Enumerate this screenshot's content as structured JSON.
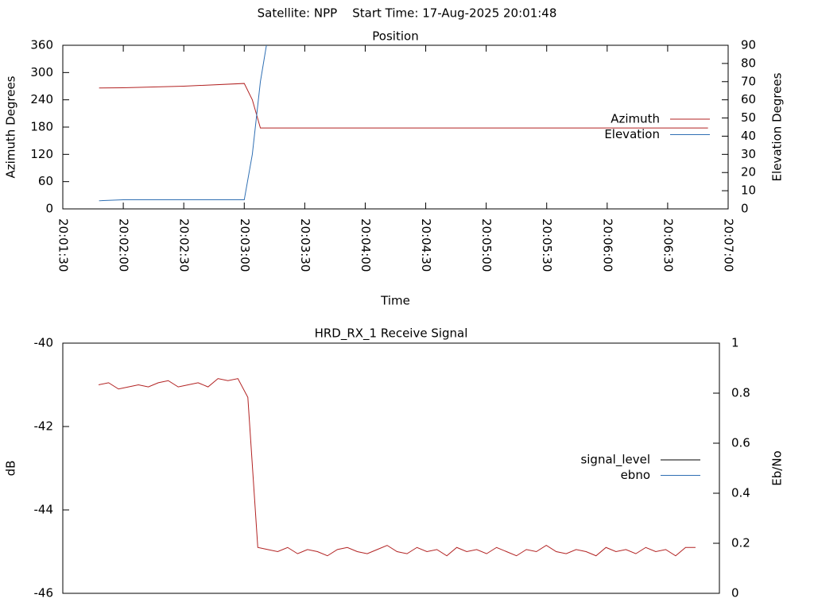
{
  "title": "Satellite: NPP    Start Time: 17-Aug-2025 20:01:48",
  "chart_data": [
    {
      "type": "line",
      "title": "Position",
      "xlabel": "Time",
      "ylabel": "Azimuth Degrees",
      "y2label": "Elevation Degrees",
      "x": [
        "20:01:48",
        "20:02:00",
        "20:02:30",
        "20:03:00",
        "20:03:04",
        "20:03:08",
        "20:03:11",
        "20:03:30",
        "20:04:00",
        "20:04:30",
        "20:05:00",
        "20:05:30",
        "20:06:00",
        "20:06:30",
        "20:06:50"
      ],
      "xlim": [
        "20:01:30",
        "20:07:00"
      ],
      "xticks": [
        "20:01:30",
        "20:02:00",
        "20:02:30",
        "20:03:00",
        "20:03:30",
        "20:04:00",
        "20:04:30",
        "20:05:00",
        "20:05:30",
        "20:06:00",
        "20:06:30",
        "20:07:00"
      ],
      "ylim": [
        0,
        360
      ],
      "yticks": [
        0,
        60,
        120,
        180,
        240,
        300,
        360
      ],
      "y2lim": [
        0,
        90
      ],
      "y2ticks": [
        0,
        10,
        20,
        30,
        40,
        50,
        60,
        70,
        80,
        90
      ],
      "legend": "right",
      "series": [
        {
          "name": "Azimuth",
          "color": "#b22222",
          "values": [
            266,
            266.5,
            270,
            276,
            240,
            178,
            178,
            178,
            178,
            178,
            178,
            178,
            178,
            178,
            178
          ]
        },
        {
          "name": "Elevation",
          "color": "#2f6fb3",
          "axis": "y2",
          "values": [
            4.5,
            5,
            5,
            5,
            30,
            70,
            90,
            null,
            null,
            null,
            null,
            null,
            null,
            null,
            null
          ]
        }
      ]
    },
    {
      "type": "line",
      "title": "HRD_RX_1 Receive Signal",
      "ylabel": "dB",
      "y2label": "Eb/No",
      "x": [
        "20:01:48",
        "20:01:53",
        "20:01:58",
        "20:02:03",
        "20:02:08",
        "20:02:13",
        "20:02:18",
        "20:02:23",
        "20:02:28",
        "20:02:33",
        "20:02:38",
        "20:02:43",
        "20:02:48",
        "20:02:53",
        "20:02:58",
        "20:03:03",
        "20:03:08",
        "20:03:13",
        "20:03:18",
        "20:03:23",
        "20:03:28",
        "20:03:33",
        "20:03:38",
        "20:03:43",
        "20:03:48",
        "20:03:53",
        "20:03:58",
        "20:04:03",
        "20:04:08",
        "20:04:13",
        "20:04:18",
        "20:04:23",
        "20:04:28",
        "20:04:33",
        "20:04:38",
        "20:04:43",
        "20:04:48",
        "20:04:53",
        "20:04:58",
        "20:05:03",
        "20:05:08",
        "20:05:13",
        "20:05:18",
        "20:05:23",
        "20:05:28",
        "20:05:33",
        "20:05:38",
        "20:05:43",
        "20:05:48",
        "20:05:53",
        "20:05:58",
        "20:06:03",
        "20:06:08",
        "20:06:13",
        "20:06:18",
        "20:06:23",
        "20:06:28",
        "20:06:33",
        "20:06:38",
        "20:06:43",
        "20:06:48"
      ],
      "xlim": [
        "20:01:30",
        "20:07:00"
      ],
      "ylim": [
        -46,
        -40
      ],
      "yticks": [
        -46,
        -44,
        -42,
        -40
      ],
      "y2lim": [
        0,
        1
      ],
      "y2ticks": [
        0,
        0.2,
        0.4,
        0.6,
        0.8,
        1
      ],
      "legend": "right",
      "series": [
        {
          "name": "signal_level",
          "color": "#000000",
          "line_color": "#b22222",
          "values": [
            -41.0,
            -40.95,
            -41.1,
            -41.05,
            -41.0,
            -41.05,
            -40.95,
            -40.9,
            -41.05,
            -41.0,
            -40.95,
            -41.05,
            -40.85,
            -40.9,
            -40.85,
            -41.3,
            -44.9,
            -44.95,
            -45.0,
            -44.9,
            -45.05,
            -44.95,
            -45.0,
            -45.1,
            -44.95,
            -44.9,
            -45.0,
            -45.05,
            -44.95,
            -44.85,
            -45.0,
            -45.05,
            -44.9,
            -45.0,
            -44.95,
            -45.1,
            -44.9,
            -45.0,
            -44.95,
            -45.05,
            -44.9,
            -45.0,
            -45.1,
            -44.95,
            -45.0,
            -44.85,
            -45.0,
            -45.05,
            -44.95,
            -45.0,
            -45.1,
            -44.9,
            -45.0,
            -44.95,
            -45.05,
            -44.9,
            -45.0,
            -44.95,
            -45.1,
            -44.9,
            -44.9
          ]
        },
        {
          "name": "ebno",
          "color": "#2f6fb3",
          "axis": "y2",
          "values": [
            null,
            null,
            null,
            null,
            null,
            null,
            null,
            null,
            null,
            null,
            null,
            null,
            null,
            null,
            null,
            null,
            null,
            null,
            null,
            null,
            null,
            null,
            null,
            null,
            null,
            null,
            null,
            null,
            null,
            null,
            null,
            null,
            null,
            null,
            null,
            null,
            null,
            null,
            null,
            null,
            null,
            null,
            null,
            null,
            null,
            null,
            null,
            null,
            null,
            null,
            null,
            null,
            null,
            null,
            null,
            null,
            null,
            null,
            null,
            null,
            null
          ]
        }
      ]
    }
  ]
}
